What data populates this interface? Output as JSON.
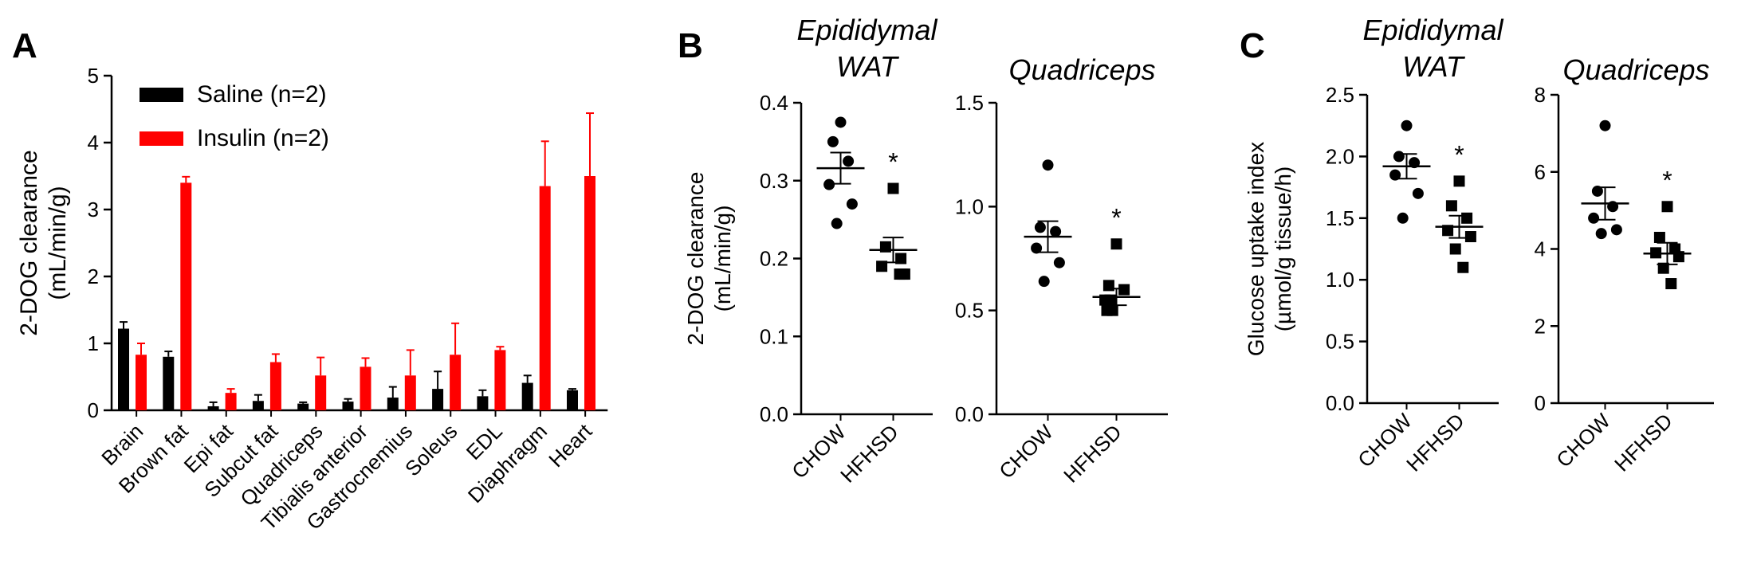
{
  "panels": {
    "A": {
      "letter": "A"
    },
    "B": {
      "letter": "B"
    },
    "C": {
      "letter": "C"
    }
  },
  "chart_data": [
    {
      "id": "A",
      "type": "bar",
      "title": "",
      "ylabel": "2-DOG clearance",
      "ylabel_unit": "(mL/min/g)",
      "ylim": [
        0,
        5
      ],
      "yticks": [
        0,
        1,
        2,
        3,
        4,
        5
      ],
      "categories": [
        "Brain",
        "Brown fat",
        "Epi fat",
        "Subcut fat",
        "Quadriceps",
        "Tibialis anterior",
        "Gastrocnemius",
        "Soleus",
        "EDL",
        "Diaphragm",
        "Heart"
      ],
      "legend_position": "top-left",
      "series": [
        {
          "name": "Saline (n=2)",
          "color": "#000000",
          "values": [
            1.22,
            0.8,
            0.06,
            0.14,
            0.1,
            0.13,
            0.19,
            0.32,
            0.21,
            0.41,
            0.3
          ],
          "errors": [
            0.1,
            0.08,
            0.06,
            0.09,
            0.02,
            0.04,
            0.16,
            0.26,
            0.09,
            0.11,
            0.02
          ]
        },
        {
          "name": "Insulin (n=2)",
          "color": "#ff0000",
          "values": [
            0.83,
            3.4,
            0.26,
            0.72,
            0.52,
            0.65,
            0.52,
            0.83,
            0.9,
            3.35,
            3.5
          ],
          "errors": [
            0.17,
            0.09,
            0.06,
            0.12,
            0.27,
            0.13,
            0.38,
            0.47,
            0.05,
            0.67,
            0.94
          ]
        }
      ]
    },
    {
      "id": "B1",
      "type": "scatter",
      "title_lines": [
        "Epididymal",
        "WAT"
      ],
      "ylabel": "2-DOG clearance",
      "ylabel_unit": "(mL/min/g)",
      "ylim": [
        0,
        0.4
      ],
      "yticks": [
        "0.0",
        "0.1",
        "0.2",
        "0.3",
        "0.4"
      ],
      "categories": [
        "CHOW",
        "HFHSD"
      ],
      "groups": [
        {
          "name": "CHOW",
          "marker": "circle",
          "points": [
            0.375,
            0.35,
            0.325,
            0.295,
            0.27,
            0.245
          ],
          "mean": 0.316,
          "sem": 0.02
        },
        {
          "name": "HFHSD",
          "marker": "square",
          "points": [
            0.29,
            0.215,
            0.2,
            0.19,
            0.18,
            0.18,
            0.18
          ],
          "mean": 0.211,
          "sem": 0.016
        }
      ],
      "significance": "*"
    },
    {
      "id": "B2",
      "type": "scatter",
      "title_lines": [
        "Quadriceps"
      ],
      "ylim": [
        0,
        1.5
      ],
      "yticks": [
        "0.0",
        "0.5",
        "1.0",
        "1.5"
      ],
      "categories": [
        "CHOW",
        "HFHSD"
      ],
      "groups": [
        {
          "name": "CHOW",
          "marker": "circle",
          "points": [
            1.2,
            0.9,
            0.88,
            0.8,
            0.73,
            0.64
          ],
          "mean": 0.855,
          "sem": 0.075
        },
        {
          "name": "HFHSD",
          "marker": "square",
          "points": [
            0.82,
            0.62,
            0.6,
            0.55,
            0.55,
            0.5,
            0.5
          ],
          "mean": 0.565,
          "sem": 0.04
        }
      ],
      "significance": "*"
    },
    {
      "id": "C1",
      "type": "scatter",
      "title_lines": [
        "Epididymal",
        "WAT"
      ],
      "ylabel": "Glucose uptake index",
      "ylabel_unit": "(µmol/g tissue/h)",
      "ylim": [
        0,
        2.5
      ],
      "yticks": [
        "0.0",
        "0.5",
        "1.0",
        "1.5",
        "2.0",
        "2.5"
      ],
      "categories": [
        "CHOW",
        "HFHSD"
      ],
      "groups": [
        {
          "name": "CHOW",
          "marker": "circle",
          "points": [
            2.25,
            2.0,
            1.95,
            1.85,
            1.7,
            1.5
          ],
          "mean": 1.92,
          "sem": 0.1
        },
        {
          "name": "HFHSD",
          "marker": "square",
          "points": [
            1.8,
            1.6,
            1.5,
            1.4,
            1.35,
            1.25,
            1.1
          ],
          "mean": 1.43,
          "sem": 0.09
        }
      ],
      "significance": "*"
    },
    {
      "id": "C2",
      "type": "scatter",
      "title_lines": [
        "Quadriceps"
      ],
      "ylim": [
        0,
        8
      ],
      "yticks": [
        "0",
        "2",
        "4",
        "6",
        "8"
      ],
      "categories": [
        "CHOW",
        "HFHSD"
      ],
      "groups": [
        {
          "name": "CHOW",
          "marker": "circle",
          "points": [
            7.2,
            5.5,
            5.1,
            4.8,
            4.5,
            4.4
          ],
          "mean": 5.18,
          "sem": 0.42
        },
        {
          "name": "HFHSD",
          "marker": "square",
          "points": [
            5.1,
            4.3,
            4.0,
            3.9,
            3.8,
            3.5,
            3.1
          ],
          "mean": 3.88,
          "sem": 0.28
        }
      ],
      "significance": "*"
    }
  ]
}
